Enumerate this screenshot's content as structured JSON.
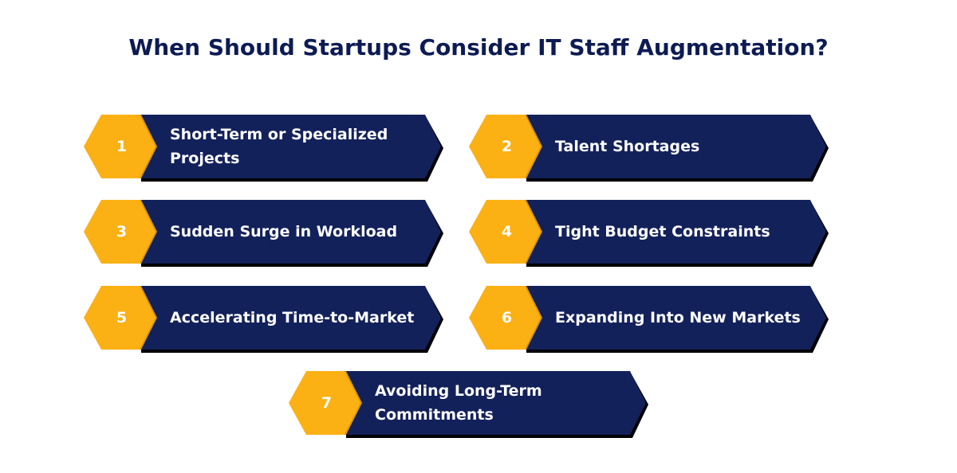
{
  "title": "When Should Startups Consider IT Staff Augmentation?",
  "colors": {
    "title": "#0d1b54",
    "card": "#13215b",
    "card_shadow": "#000000",
    "hexagon": "#fbb013",
    "hexagon_shadow": "#d89211",
    "divider": "#ffffff"
  },
  "items": [
    {
      "number": "1",
      "label": "Short-Term or Specialized Projects"
    },
    {
      "number": "2",
      "label": "Talent Shortages"
    },
    {
      "number": "3",
      "label": "Sudden Surge in Workload"
    },
    {
      "number": "4",
      "label": "Tight Budget Constraints"
    },
    {
      "number": "5",
      "label": "Accelerating Time-to-Market"
    },
    {
      "number": "6",
      "label": "Expanding Into New Markets"
    },
    {
      "number": "7",
      "label": "Avoiding Long-Term Commitments"
    }
  ]
}
